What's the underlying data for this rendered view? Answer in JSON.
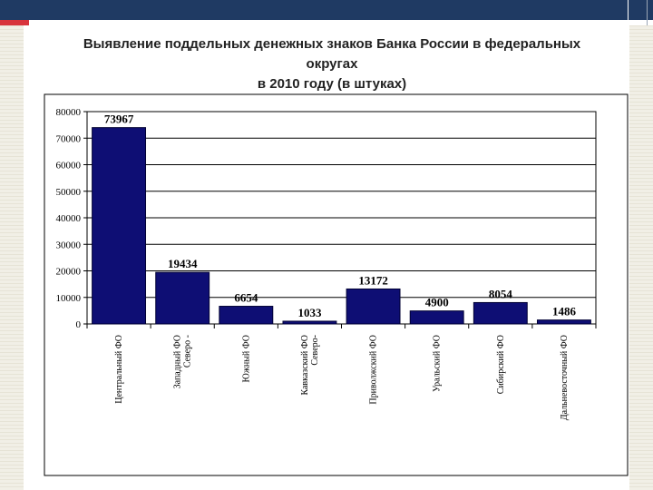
{
  "slide": {
    "title_line1": "Выявление поддельных денежных знаков Банка России в федеральных округах",
    "title_line2": "в 2010 году (в штуках)"
  },
  "colors": {
    "bar": "#0e0e74",
    "header": "#1f3a63",
    "accent": "#d8343c",
    "grid": "#000000"
  },
  "chart_data": {
    "type": "bar",
    "title": "Выявление поддельных денежных знаков Банка России в федеральных округах в 2010 году (в штуках)",
    "xlabel": "",
    "ylabel": "",
    "ylim": [
      0,
      80000
    ],
    "yticks": [
      0,
      10000,
      20000,
      30000,
      40000,
      50000,
      60000,
      70000,
      80000
    ],
    "grid": true,
    "categories": [
      [
        "Центральный ФО"
      ],
      [
        "Северо -",
        "Западный ФО"
      ],
      [
        "Южный ФО"
      ],
      [
        "Северо-",
        "Кавказский ФО"
      ],
      [
        "Приволжский ФО"
      ],
      [
        "Уральский ФО"
      ],
      [
        "Сибирский ФО"
      ],
      [
        "Дальневосточный ФО"
      ]
    ],
    "values": [
      73967,
      19434,
      6654,
      1033,
      13172,
      4900,
      8054,
      1486
    ]
  }
}
